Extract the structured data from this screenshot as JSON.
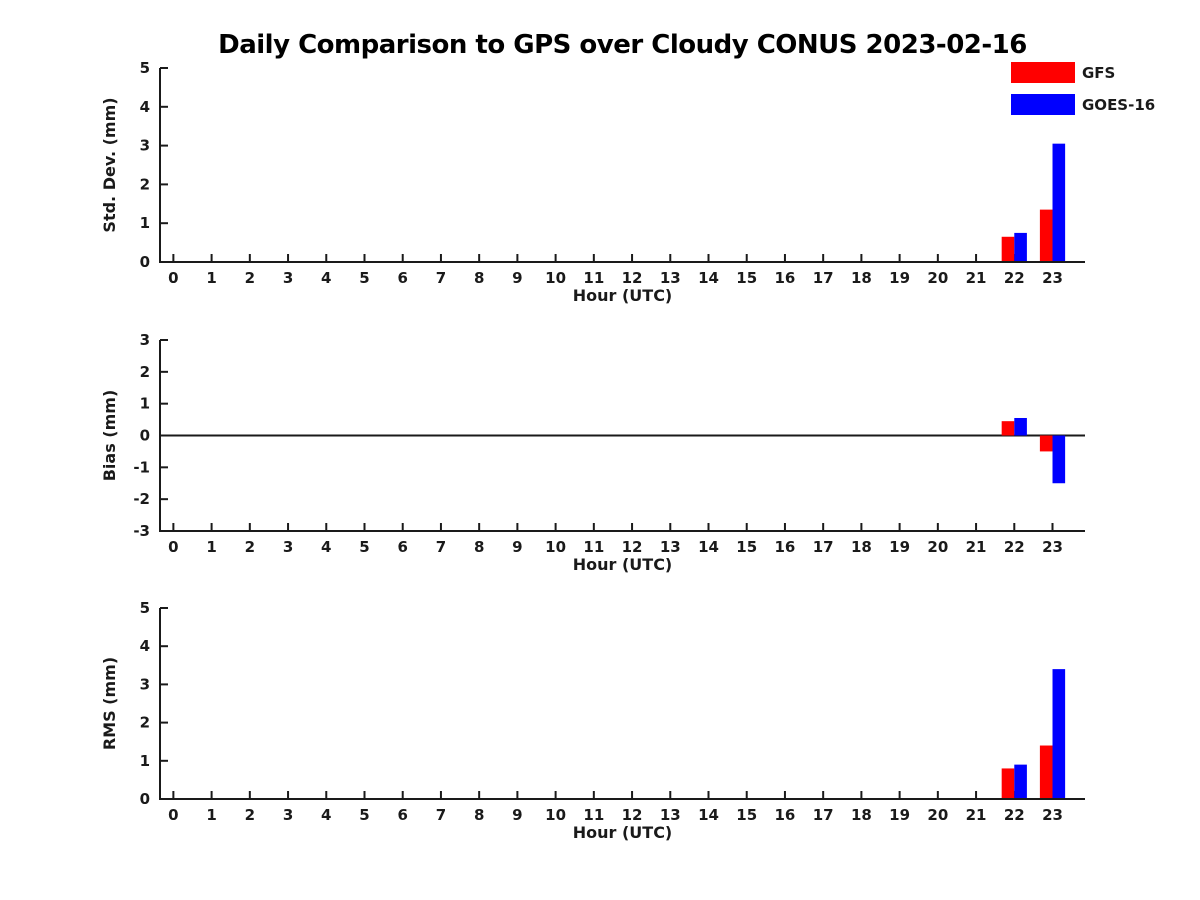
{
  "chart_data": {
    "type": "bar",
    "title": "Daily Comparison to GPS over Cloudy CONUS 2023-02-16",
    "x_label": "Hour (UTC)",
    "x_ticks": [
      "0",
      "1",
      "2",
      "3",
      "4",
      "5",
      "6",
      "7",
      "8",
      "9",
      "10",
      "11",
      "12",
      "13",
      "14",
      "15",
      "16",
      "17",
      "18",
      "19",
      "20",
      "21",
      "22",
      "23"
    ],
    "xlim": [
      -0.35,
      23.85
    ],
    "grid": false,
    "legend": {
      "position": "top-right",
      "items": [
        {
          "name": "GFS",
          "color": "#ff0000"
        },
        {
          "name": "GOES-16",
          "color": "#0000ff"
        }
      ]
    },
    "subplots": [
      {
        "ylabel": "Std. Dev. (mm)",
        "xlabel": "Hour (UTC)",
        "ylim": [
          0,
          5
        ],
        "yticks": [
          "0",
          "1",
          "2",
          "3",
          "4",
          "5"
        ],
        "zero_line": false,
        "series": [
          {
            "name": "GFS",
            "color": "#ff0000",
            "points": [
              [
                22,
                0.65
              ],
              [
                23,
                1.35
              ]
            ]
          },
          {
            "name": "GOES-16",
            "color": "#0000ff",
            "points": [
              [
                22,
                0.75
              ],
              [
                23,
                3.05
              ]
            ]
          }
        ]
      },
      {
        "ylabel": "Bias (mm)",
        "xlabel": "Hour (UTC)",
        "ylim": [
          -3,
          3
        ],
        "yticks": [
          "-3",
          "-2",
          "-1",
          "0",
          "1",
          "2",
          "3"
        ],
        "zero_line": true,
        "series": [
          {
            "name": "GFS",
            "color": "#ff0000",
            "points": [
              [
                22,
                0.45
              ],
              [
                23,
                -0.5
              ]
            ]
          },
          {
            "name": "GOES-16",
            "color": "#0000ff",
            "points": [
              [
                22,
                0.55
              ],
              [
                23,
                -1.5
              ]
            ]
          }
        ]
      },
      {
        "ylabel": "RMS (mm)",
        "xlabel": "Hour (UTC)",
        "ylim": [
          0,
          5
        ],
        "yticks": [
          "0",
          "1",
          "2",
          "3",
          "4",
          "5"
        ],
        "zero_line": false,
        "series": [
          {
            "name": "GFS",
            "color": "#ff0000",
            "points": [
              [
                22,
                0.8
              ],
              [
                23,
                1.4
              ]
            ]
          },
          {
            "name": "GOES-16",
            "color": "#0000ff",
            "points": [
              [
                22,
                0.9
              ],
              [
                23,
                3.4
              ]
            ]
          }
        ]
      }
    ],
    "colors": {
      "axis": "#1a1a1a",
      "background": "#ffffff"
    }
  }
}
